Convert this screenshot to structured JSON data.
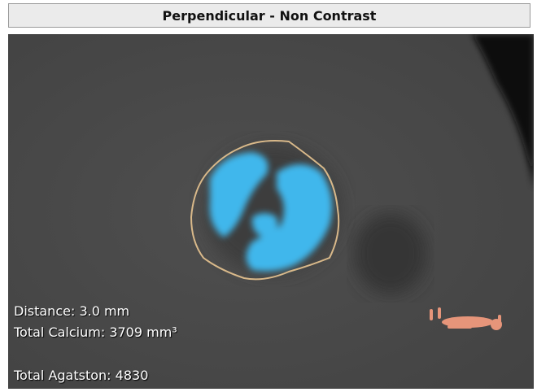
{
  "header": {
    "title": "Perpendicular - Non Contrast"
  },
  "overlay": {
    "lines": [
      "Distance: 3.0 mm",
      "Total Calcium: 3709 mm³",
      "Total Agatston: 4830"
    ]
  }
}
